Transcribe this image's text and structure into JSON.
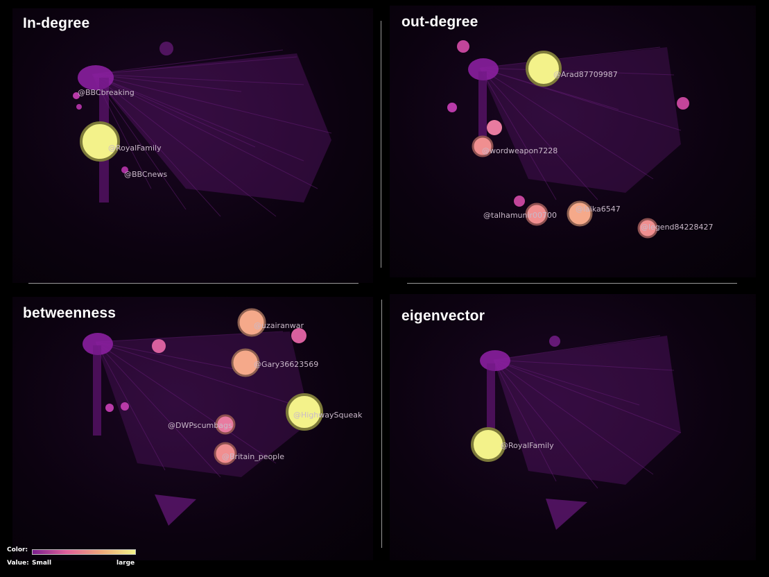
{
  "panels": [
    {
      "title": "In-degree",
      "nodes": [
        {
          "label": "@BBCbreaking",
          "level": 0.15
        },
        {
          "label": "@RoyalFamily",
          "level": 1.0
        },
        {
          "label": "@BBCnews",
          "level": 0.15
        }
      ]
    },
    {
      "title": "out-degree",
      "nodes": [
        {
          "label": "@Arad87709987",
          "level": 1.0
        },
        {
          "label": "@wordweapon7228",
          "level": 0.6
        },
        {
          "label": "@talhamunir00700",
          "level": 0.6
        },
        {
          "label": "@laika6547",
          "level": 0.65
        },
        {
          "label": "@legend84228427",
          "level": 0.55
        }
      ]
    },
    {
      "title": "betweenness",
      "nodes": [
        {
          "label": "@uzairanwar",
          "level": 0.75
        },
        {
          "label": "@Gary36623569",
          "level": 0.75
        },
        {
          "label": "@HighwaySqueak",
          "level": 1.0
        },
        {
          "label": "@DWPscumbags",
          "level": 0.55
        },
        {
          "label": "@Britain_people",
          "level": 0.6
        }
      ]
    },
    {
      "title": "eigenvector",
      "nodes": [
        {
          "label": "@RoyalFamily",
          "level": 1.0
        }
      ]
    }
  ],
  "legend": {
    "color_label": "Color:",
    "value_label": "Value:",
    "small_label": "Small",
    "large_label": "large",
    "colors": [
      "#7a1f8e",
      "#e0609a",
      "#f0a67a",
      "#f3f28a"
    ]
  }
}
